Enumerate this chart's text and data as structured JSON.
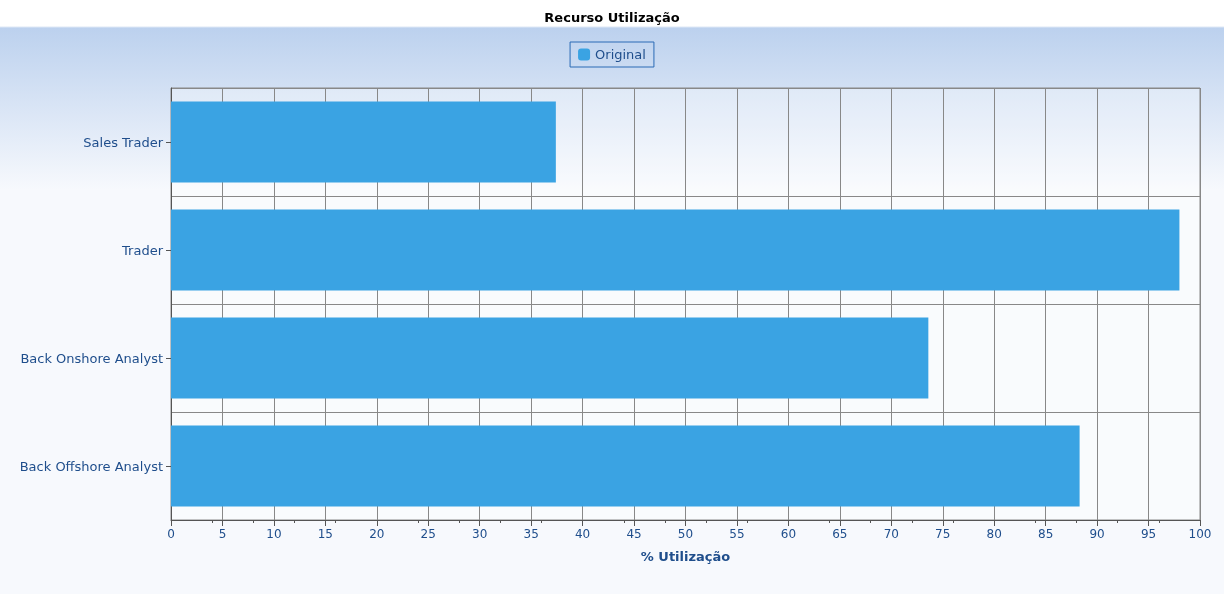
{
  "chart_data": {
    "type": "bar",
    "orientation": "horizontal",
    "title": "Recurso Utilização",
    "xlabel": "% Utilização",
    "categories": [
      "Sales Trader",
      "Trader",
      "Back Onshore Analyst",
      "Back Offshore Analyst"
    ],
    "series": [
      {
        "name": "Original",
        "color": "#3aa3e3",
        "values": [
          37.4,
          98.0,
          73.6,
          88.3
        ]
      }
    ],
    "xlim": [
      0,
      100
    ],
    "xticks": [
      0,
      5,
      10,
      15,
      20,
      25,
      30,
      35,
      40,
      45,
      50,
      55,
      60,
      65,
      70,
      75,
      80,
      85,
      90,
      95,
      100
    ],
    "grid": true,
    "legend": "top"
  }
}
